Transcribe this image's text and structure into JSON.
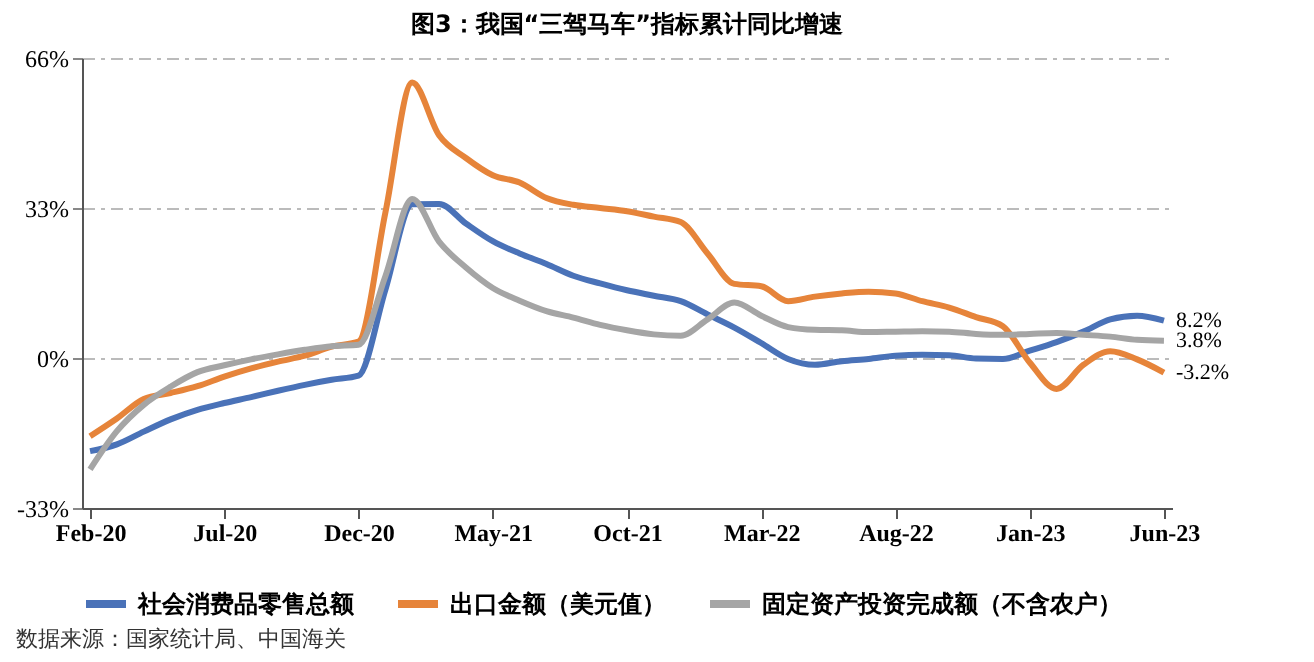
{
  "chart_data": {
    "type": "line",
    "title": "图3：我国“三驾马车”指标累计同比增速",
    "categories": [
      "Feb-20",
      null,
      null,
      null,
      null,
      "Jul-20",
      null,
      null,
      null,
      null,
      "Dec-20",
      null,
      null,
      null,
      null,
      "May-21",
      null,
      null,
      null,
      null,
      "Oct-21",
      null,
      null,
      null,
      null,
      "Mar-22",
      null,
      null,
      null,
      null,
      "Aug-22",
      null,
      null,
      null,
      null,
      "Jan-23",
      null,
      null,
      null,
      null,
      "Jun-23"
    ],
    "series": [
      {
        "name": "社会消费品零售总额",
        "color": "#4a72b8",
        "values": [
          -20.5,
          -19.0,
          -16.2,
          -13.5,
          -11.4,
          -9.9,
          -8.6,
          -7.2,
          -5.9,
          -4.8,
          -3.9,
          15,
          33.8,
          33.9,
          29.6,
          25.7,
          23.0,
          20.7,
          18.1,
          16.4,
          14.9,
          13.7,
          12.5,
          9.6,
          6.7,
          3.3,
          -0.2,
          -1.5,
          -0.7,
          -0.2,
          0.5,
          0.7,
          0.6,
          -0.1,
          -0.2,
          1.6,
          3.5,
          5.8,
          8.5,
          9.3,
          8.2
        ]
      },
      {
        "name": "出口金额（美元值）",
        "color": "#e6843a",
        "values": [
          -17.2,
          -13.3,
          -9.0,
          -7.7,
          -6.2,
          -4.1,
          -2.3,
          -0.8,
          0.5,
          2.5,
          3.6,
          32,
          60.6,
          49.0,
          44.0,
          40.2,
          38.6,
          35.2,
          33.7,
          33.0,
          32.3,
          31.1,
          29.9,
          23,
          16.3,
          15.8,
          12.5,
          13.5,
          14.2,
          14.6,
          14.2,
          12.5,
          11.1,
          9.0,
          7.0,
          -1,
          -6.8,
          -1.5,
          1.5,
          -0.3,
          -3.2
        ]
      },
      {
        "name": "固定资产投资完成额（不含农户）",
        "color": "#a5a5a5",
        "values": [
          -24.5,
          -16.1,
          -10.3,
          -6.3,
          -3.1,
          -1.6,
          -0.3,
          0.8,
          1.8,
          2.6,
          2.9,
          18,
          35.0,
          25.6,
          19.9,
          15.4,
          12.6,
          10.3,
          8.9,
          7.3,
          6.1,
          5.2,
          4.9,
          8.5,
          12.2,
          9.3,
          6.8,
          6.2,
          6.1,
          5.7,
          5.8,
          5.9,
          5.8,
          5.3,
          5.1,
          5.3,
          5.5,
          5.1,
          4.7,
          4.0,
          3.8
        ]
      }
    ],
    "ylim": [
      -33,
      66
    ],
    "yticks": [
      {
        "value": -33,
        "label": "-33%"
      },
      {
        "value": 0,
        "label": "0%"
      },
      {
        "value": 33,
        "label": "33%"
      },
      {
        "value": 66,
        "label": "66%"
      }
    ],
    "grid": "y",
    "legend": "bottom",
    "marker": "none",
    "line_style": "solid",
    "annotations": [
      {
        "text": "8.2%",
        "x": "Jun-23",
        "y": 8.2
      },
      {
        "text": "3.8%",
        "x": "Jun-23",
        "y": 3.8
      },
      {
        "text": "-3.2%",
        "x": "Jun-23",
        "y": -3.2
      },
      "数据来源：国家统计局、中国海关"
    ]
  }
}
